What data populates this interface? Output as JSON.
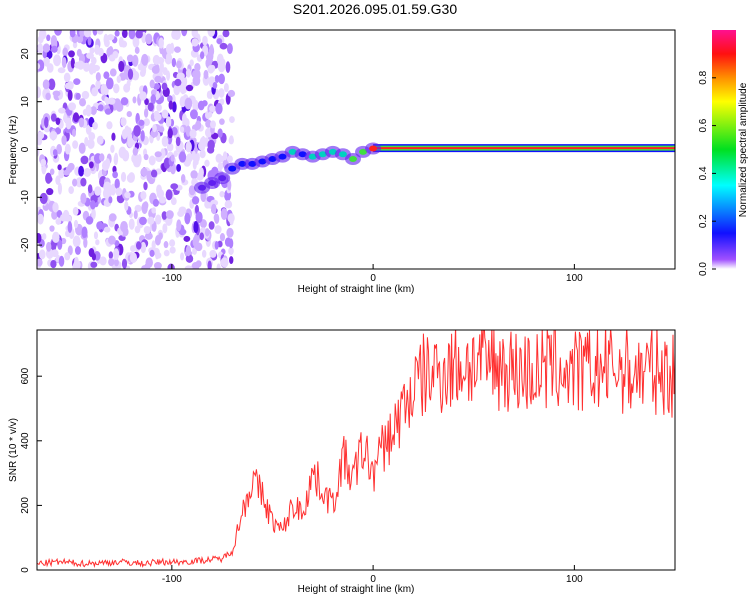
{
  "title": "S201.2026.095.01.59.G30",
  "chart_data": [
    {
      "type": "heatmap",
      "xlabel": "Height of straight line (km)",
      "ylabel": "Frequency (Hz)",
      "xlim": [
        -167,
        150
      ],
      "ylim": [
        -25,
        25
      ],
      "xticks": [
        -100,
        0,
        100
      ],
      "yticks": [
        -20,
        -10,
        0,
        10,
        20
      ],
      "colorbar": {
        "label": "Normalized spectral amplitude",
        "range": [
          0,
          1
        ],
        "ticks": [
          "0.0",
          "0.2",
          "0.4",
          "0.6",
          "0.8"
        ]
      },
      "noise_region_x": [
        -167,
        -75
      ],
      "ridge": {
        "x": [
          -85,
          -80,
          -75,
          -70,
          -65,
          -60,
          -55,
          -50,
          -45,
          -40,
          -35,
          -30,
          -25,
          -20,
          -15,
          -10,
          -5,
          0,
          10,
          30,
          50,
          70,
          90,
          110,
          130,
          150
        ],
        "freq": [
          -8,
          -7,
          -6,
          -4,
          -3,
          -3,
          -2.5,
          -2,
          -1.5,
          -0.5,
          -1,
          -1.5,
          -1,
          -0.5,
          -1,
          -2,
          -0.5,
          0.2,
          0.3,
          0.3,
          0.3,
          0.3,
          0.3,
          0.3,
          0.3,
          0.3
        ],
        "amplitude": [
          0.3,
          0.3,
          0.35,
          0.4,
          0.45,
          0.4,
          0.45,
          0.4,
          0.45,
          0.5,
          0.45,
          0.5,
          0.55,
          0.6,
          0.6,
          0.85,
          0.7,
          0.9,
          0.95,
          0.95,
          0.95,
          0.95,
          0.95,
          0.95,
          0.95,
          0.95
        ]
      }
    },
    {
      "type": "line",
      "xlabel": "Height of straight line (km)",
      "ylabel": "SNR (10 * v/v)",
      "xlim": [
        -167,
        150
      ],
      "ylim": [
        0,
        743
      ],
      "xticks": [
        -100,
        0,
        100
      ],
      "yticks": [
        0,
        200,
        400,
        600
      ],
      "color": "#ff3030",
      "x": [
        -167,
        -155,
        -145,
        -135,
        -125,
        -115,
        -105,
        -95,
        -85,
        -75,
        -70,
        -65,
        -60,
        -55,
        -50,
        -45,
        -40,
        -35,
        -30,
        -25,
        -20,
        -15,
        -10,
        -5,
        0,
        5,
        10,
        15,
        20,
        25,
        30,
        40,
        50,
        60,
        70,
        80,
        90,
        100,
        110,
        120,
        130,
        140,
        150
      ],
      "values": [
        20,
        25,
        20,
        22,
        25,
        20,
        25,
        25,
        30,
        35,
        60,
        180,
        280,
        230,
        150,
        120,
        200,
        180,
        300,
        250,
        200,
        350,
        280,
        380,
        300,
        380,
        430,
        500,
        560,
        600,
        610,
        630,
        640,
        640,
        620,
        610,
        630,
        610,
        620,
        630,
        610,
        620,
        600
      ]
    }
  ]
}
